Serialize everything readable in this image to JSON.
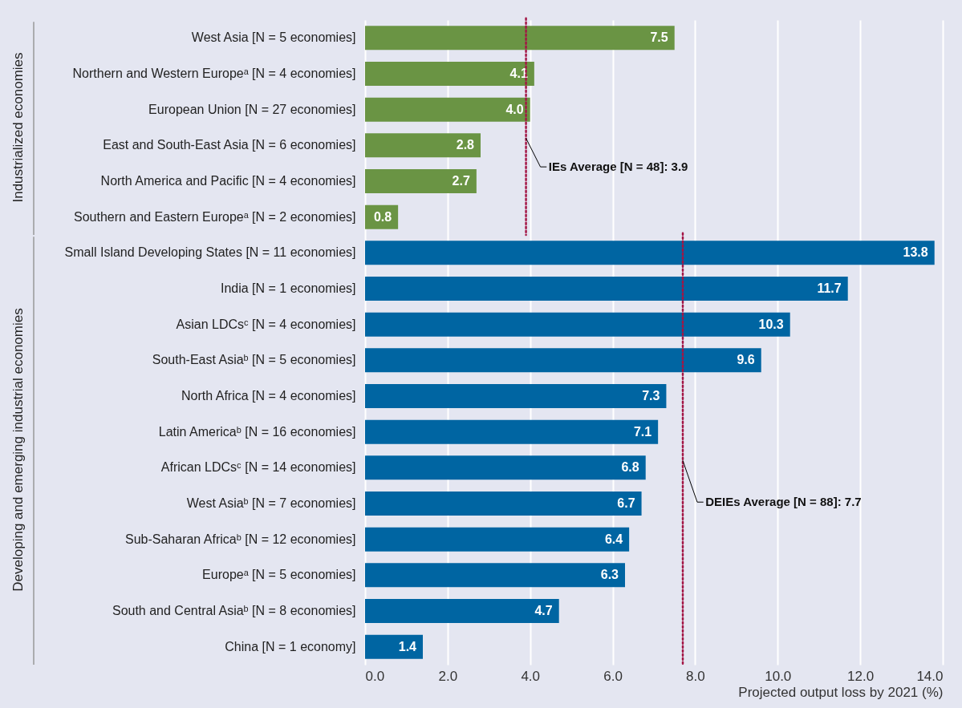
{
  "chart_data": {
    "type": "bar",
    "orientation": "horizontal",
    "xlabel": "Projected output loss by 2021 (%)",
    "categories": [
      "West Asia [N = 5 economies]",
      "Northern and Western Europeᵃ [N = 4 economies]",
      "European Union [N = 27 economies]",
      "East and South-East Asia [N = 6 economies]",
      "North America and Pacific [N = 4 economies]",
      "Southern and Eastern Europeᵃ [N = 2 economies]",
      "Small Island Developing States [N = 11 economies]",
      "India [N = 1 economies]",
      "Asian LDCsᶜ [N = 4 economies]",
      "South-East Asiaᵇ [N = 5 economies]",
      "North Africa [N = 4 economies]",
      "Latin Americaᵇ [N = 16 economies]",
      "African LDCsᶜ [N = 14 economies]",
      "West Asiaᵇ [N = 7 economies]",
      "Sub-Saharan Africaᵇ [N = 12 economies]",
      "Europeᵃ [N = 5 economies]",
      "South and Central Asiaᵇ [N = 8 economies]",
      "China [N = 1 economy]"
    ],
    "values": [
      7.5,
      4.1,
      4.0,
      2.8,
      2.7,
      0.8,
      13.8,
      11.7,
      10.3,
      9.6,
      7.3,
      7.1,
      6.8,
      6.7,
      6.4,
      6.3,
      4.7,
      1.4
    ],
    "colors": [
      "#6a9444",
      "#6a9444",
      "#6a9444",
      "#6a9444",
      "#6a9444",
      "#6a9444",
      "#0065a2",
      "#0065a2",
      "#0065a2",
      "#0065a2",
      "#0065a2",
      "#0065a2",
      "#0065a2",
      "#0065a2",
      "#0065a2",
      "#0065a2",
      "#0065a2",
      "#0065a2"
    ],
    "xlim": [
      0,
      14
    ],
    "xticks": [
      {
        "value": 0,
        "label": "0.0"
      },
      {
        "value": 2,
        "label": "2.0"
      },
      {
        "value": 4,
        "label": "4.0"
      },
      {
        "value": 6,
        "label": "6.0"
      },
      {
        "value": 8,
        "label": "8.0"
      },
      {
        "value": 10,
        "label": "10.0"
      },
      {
        "value": 12,
        "label": "12.0"
      },
      {
        "value": 14,
        "label": "14.0"
      }
    ],
    "grid": true,
    "value_labels": [
      "7.5",
      "4.1",
      "4.0",
      "2.8",
      "2.7",
      "0.8",
      "13.8",
      "11.7",
      "10.3",
      "9.6",
      "7.3",
      "7.1",
      "6.8",
      "6.7",
      "6.4",
      "6.3",
      "4.7",
      "1.4"
    ],
    "ref_lines": [
      {
        "axis": "x",
        "value": 3.9,
        "label": "IEs Average [N = 48]: 3.9",
        "color": "#a31545",
        "line_style": "dotted"
      },
      {
        "axis": "x",
        "value": 7.7,
        "label": "DEIEs Average [N = 88]: 7.7",
        "color": "#a31545",
        "line_style": "dotted"
      }
    ],
    "annotations": [
      "Industrialized economies",
      "Developing and emerging industrial economies"
    ]
  }
}
